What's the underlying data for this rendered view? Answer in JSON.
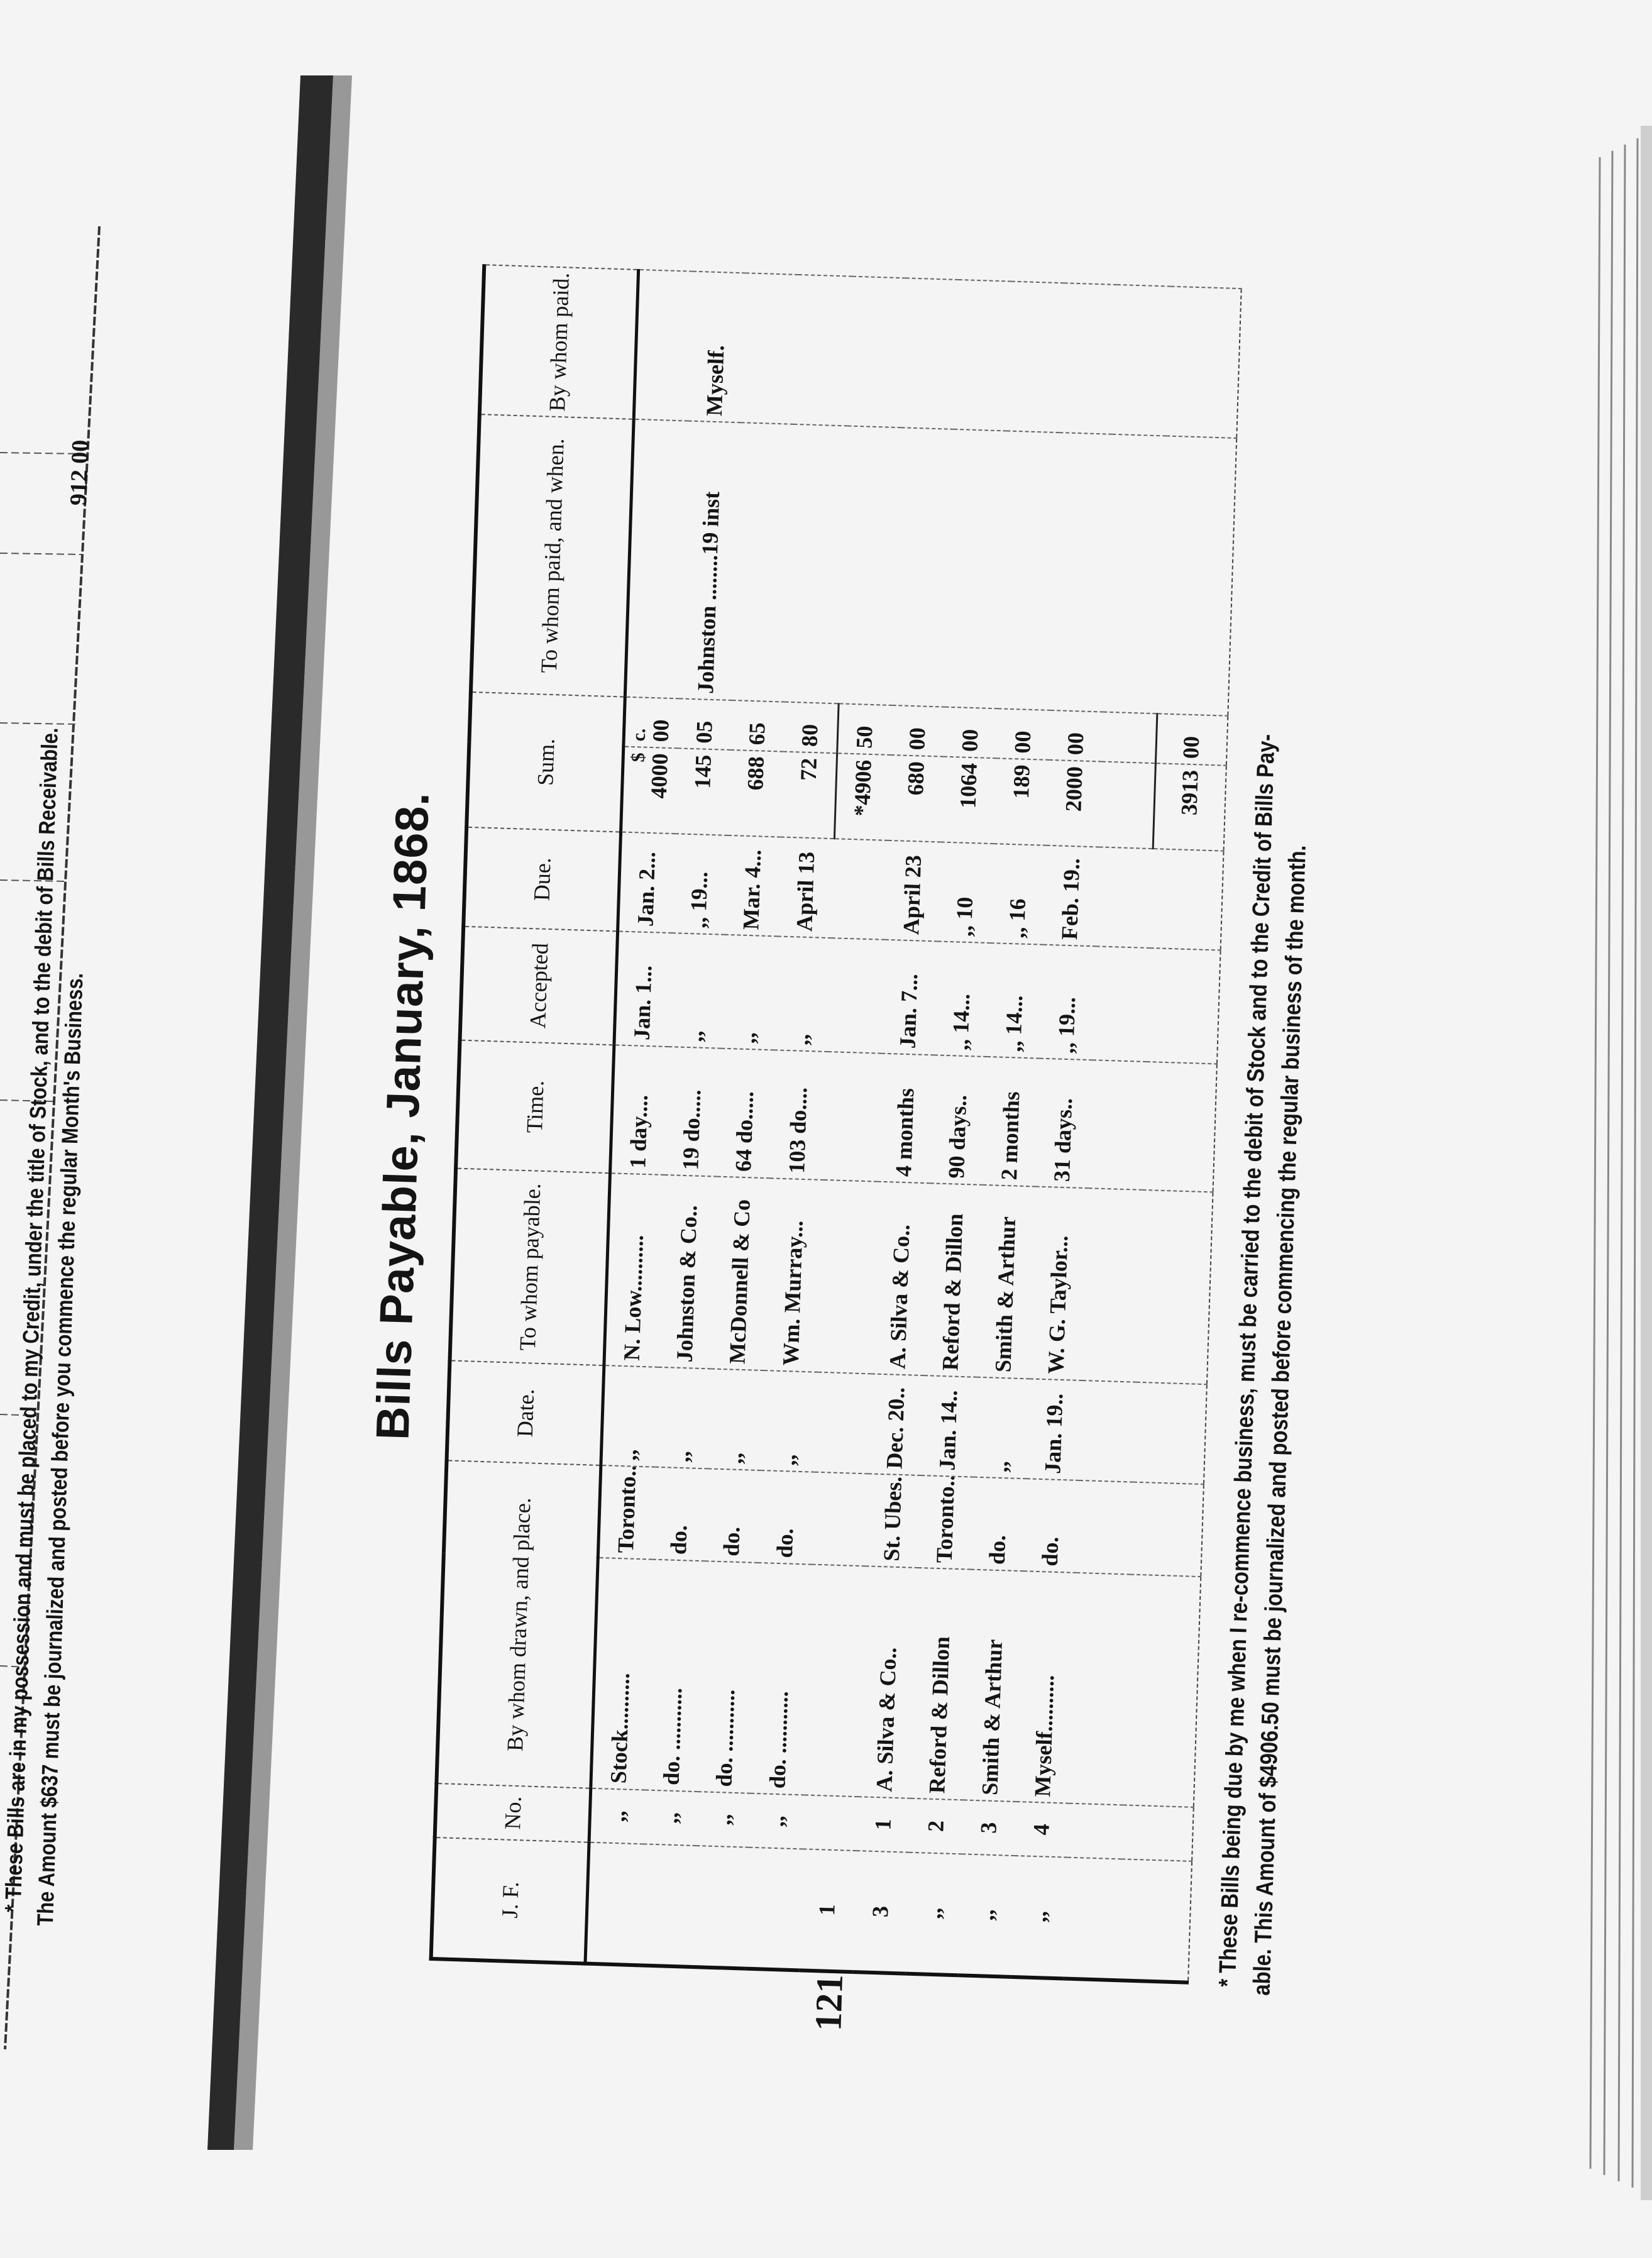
{
  "left_page": {
    "amount": "912 00",
    "footnote_line1": "* These Bills are in my possession and must be placed to my Credit, under the title of Stock, and to the debit of Bills Receivable.",
    "footnote_line2": "The Amount $637 must be journalized and posted before you commence the regular Month's Business."
  },
  "right_page": {
    "title": "Bills Payable, January, 1868.",
    "page_number": "121",
    "columns": [
      "J. F.",
      "No.",
      "By whom drawn, and place.",
      "Date.",
      "To whom payable.",
      "Time.",
      "Accepted",
      "Due.",
      "Sum.",
      "To whom paid, and when.",
      "By whom paid."
    ],
    "currency": {
      "dollars": "$",
      "cents": "c."
    },
    "rows": [
      {
        "jf": "",
        "no": ",,",
        "drawer": "Stock..........",
        "place": "Toronto..",
        "date": ",,",
        "payable": "N. Low..........",
        "time": "1 day....",
        "accepted": "Jan. 1...",
        "due": "Jan. 2...",
        "dollars": "4000",
        "cents": "00",
        "paid_to": "",
        "paid_by": ""
      },
      {
        "jf": "",
        "no": ",,",
        "drawer": "do. ...........",
        "place": "do.",
        "date": ",,",
        "payable": "Johnston & Co..",
        "time": "19 do.....",
        "accepted": ",,",
        "due": ",, 19...",
        "dollars": "145",
        "cents": "05",
        "paid_to": "Johnston ........19 inst",
        "paid_by": "Myself."
      },
      {
        "jf": "",
        "no": ",,",
        "drawer": "do. ...........",
        "place": "do.",
        "date": ",,",
        "payable": "McDonnell & Co",
        "time": "64 do.....",
        "accepted": ",,",
        "due": "Mar. 4...",
        "dollars": "688",
        "cents": "65",
        "paid_to": "",
        "paid_by": ""
      },
      {
        "jf": "",
        "no": ",,",
        "drawer": "do. ...........",
        "place": "do.",
        "date": ",,",
        "payable": "Wm. Murray...",
        "time": "103 do....",
        "accepted": ",,",
        "due": "April 13",
        "dollars": "72",
        "cents": "80",
        "paid_to": "",
        "paid_by": ""
      },
      {
        "jf": "1",
        "no": "",
        "drawer": "",
        "place": "",
        "date": "",
        "payable": "",
        "time": "",
        "accepted": "",
        "due": "",
        "dollars": "*4906",
        "cents": "50",
        "paid_to": "",
        "paid_by": ""
      },
      {
        "jf": "3",
        "no": "1",
        "drawer": "A. Silva & Co..",
        "place": "St. Ubes.",
        "date": "Dec. 20..",
        "payable": "A. Silva & Co..",
        "time": "4 months",
        "accepted": "Jan. 7...",
        "due": "April 23",
        "dollars": "680",
        "cents": "00",
        "paid_to": "",
        "paid_by": ""
      },
      {
        "jf": ",,",
        "no": "2",
        "drawer": "Reford & Dillon",
        "place": "Toronto..",
        "date": "Jan. 14..",
        "payable": "Reford & Dillon",
        "time": "90 days..",
        "accepted": ",, 14...",
        "due": ",, 10",
        "dollars": "1064",
        "cents": "00",
        "paid_to": "",
        "paid_by": ""
      },
      {
        "jf": ",,",
        "no": "3",
        "drawer": "Smith & Arthur",
        "place": "do.",
        "date": ",,",
        "payable": "Smith & Arthur",
        "time": "2 months",
        "accepted": ",, 14...",
        "due": ",, 16",
        "dollars": "189",
        "cents": "00",
        "paid_to": "",
        "paid_by": ""
      },
      {
        "jf": ",,",
        "no": "4",
        "drawer": "Myself..........",
        "place": "do.",
        "date": "Jan. 19..",
        "payable": "W. G. Taylor...",
        "time": "31 days..",
        "accepted": ",, 19...",
        "due": "Feb. 19..",
        "dollars": "2000",
        "cents": "00",
        "paid_to": "",
        "paid_by": ""
      },
      {
        "jf": "",
        "no": "",
        "drawer": "",
        "place": "",
        "date": "",
        "payable": "",
        "time": "",
        "accepted": "",
        "due": "",
        "dollars": "",
        "cents": "",
        "paid_to": "",
        "paid_by": ""
      }
    ],
    "total": {
      "dollars": "3913",
      "cents": "00"
    },
    "footnote_line1": "* These Bills being due by me when I re-commence business, must be carried to the debit of Stock and to the Credit of Bills Pay-",
    "footnote_line2": "able.  This Amount of $4906.50 must be journalized and posted before commencing the regular business of the month."
  }
}
